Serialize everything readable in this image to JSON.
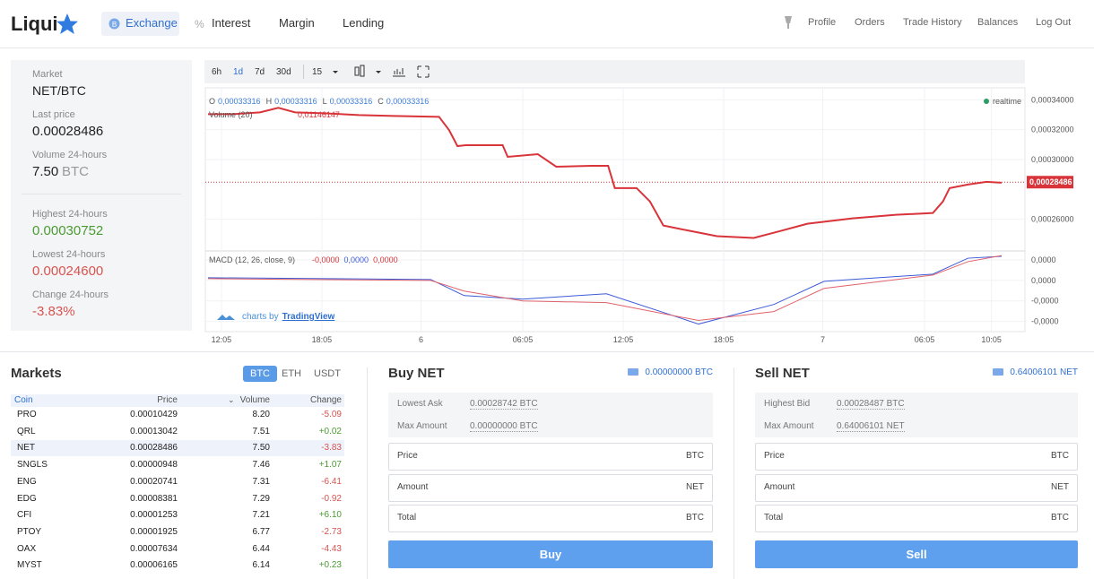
{
  "nav": {
    "brand": "Liqui",
    "items": [
      "Exchange",
      "Interest",
      "Margin",
      "Lending"
    ],
    "account": [
      "Profile",
      "Orders",
      "Trade History",
      "Balances",
      "Log Out"
    ]
  },
  "summary": {
    "market_label": "Market",
    "market": "NET/BTC",
    "stats": [
      {
        "label": "Last price",
        "value": "0.00028486"
      },
      {
        "label": "Volume 24-hours",
        "value": "7.50",
        "unit": "BTC"
      },
      {
        "label": "Highest 24-hours",
        "value": "0.00030752"
      },
      {
        "label": "Lowest 24-hours",
        "value": "0.00024600"
      },
      {
        "label": "Change 24-hours",
        "value": "-3.83%"
      }
    ]
  },
  "chart": {
    "type": "line",
    "ranges": [
      "6h",
      "1d",
      "7d",
      "30d"
    ],
    "interval": "15",
    "ohlc": [
      [
        "O",
        "0,00033316"
      ],
      [
        "H",
        "0,00033316"
      ],
      [
        "L",
        "0,00033316"
      ],
      [
        "C",
        "0,00033316"
      ]
    ],
    "volume_label": "Volume (20)",
    "volume_value": "0,01146147",
    "status": "realtime",
    "xlim": [
      -0.96,
      48
    ],
    "xticks": [
      {
        "value": 0,
        "label": "12:05"
      },
      {
        "value": 6,
        "label": "18:05"
      },
      {
        "value": 11.92,
        "label": "6"
      },
      {
        "value": 18,
        "label": "06:05"
      },
      {
        "value": 24,
        "label": "12:05"
      },
      {
        "value": 30,
        "label": "18:05"
      },
      {
        "value": 35.92,
        "label": "7"
      },
      {
        "value": 42,
        "label": "06:05"
      },
      {
        "value": 46,
        "label": "10:05"
      }
    ],
    "ylim": [
      0.00024,
      0.000348
    ],
    "yticks": [
      {
        "value": 0.00034,
        "label": "0,00034000"
      },
      {
        "value": 0.00032,
        "label": "0,00032000"
      },
      {
        "value": 0.0003,
        "label": "0,00030000"
      },
      {
        "value": 0.00026,
        "label": "0,00026000"
      }
    ],
    "price_marker": {
      "value": 0.00028486,
      "label": "0,00028486"
    },
    "price": {
      "color": "#d8343a",
      "x": [
        -0.8,
        0.7,
        2.3,
        3.4,
        4.4,
        6.1,
        8.2,
        10.3,
        13.0,
        13.6,
        14.1,
        14.6,
        16.8,
        17.1,
        18.9,
        20.0,
        22.1,
        23.1,
        23.5,
        24.8,
        25.6,
        26.4,
        28.0,
        29.6,
        31.8,
        33.4,
        35.0,
        37.7,
        40.3,
        42.5,
        43.1,
        43.5,
        44.6,
        45.7,
        46.6
      ],
      "values": [
        0.0003304,
        0.0003304,
        0.0003316,
        0.0003346,
        0.0003316,
        0.000331,
        0.0003298,
        0.0003292,
        0.0003286,
        0.0003197,
        0.000309,
        0.0003096,
        0.0003096,
        0.0003018,
        0.0003036,
        0.0002952,
        0.0002958,
        0.0002958,
        0.0002809,
        0.0002809,
        0.0002719,
        0.0002558,
        0.0002522,
        0.0002487,
        0.0002475,
        0.0002522,
        0.000257,
        0.0002606,
        0.000263,
        0.0002642,
        0.0002719,
        0.0002809,
        0.0002833,
        0.0002851,
        0.0002845
      ]
    },
    "macd_label": "MACD (12, 26, close, 9)",
    "macd_values": [
      "-0,0000",
      "0,0000",
      "0,0000"
    ],
    "macd_ylim": [
      -5e-05,
      2.7e-05
    ],
    "macd_yticks": [
      {
        "value": 2e-05,
        "label": "0,0000"
      },
      {
        "value": 0,
        "label": "0,0000"
      },
      {
        "value": -2e-05,
        "label": "-0,0000"
      },
      {
        "value": -4e-05,
        "label": "-0,0000"
      }
    ],
    "macd_x": [
      -0.8,
      12.5,
      14.5,
      18,
      23,
      28.5,
      33,
      36,
      42.5,
      44.6,
      46.6
    ],
    "macd_series": [
      {
        "color": "#3d5bd8",
        "values": [
          2.6e-06,
          9e-07,
          -1.48e-05,
          -1.83e-05,
          -1.3e-05,
          -4.26e-05,
          -2.35e-05,
          -9e-07,
          6.1e-06,
          2.17e-05,
          2.35e-05
        ]
      },
      {
        "color": "#e0626a",
        "values": [
          1.7e-06,
          0,
          -1.04e-05,
          -2e-05,
          -2.17e-05,
          -3.91e-05,
          -3.04e-05,
          -7.8e-06,
          5.2e-06,
          1.83e-05,
          2.43e-05
        ]
      }
    ],
    "credit": "charts by",
    "credit_brand": "TradingView"
  },
  "markets": {
    "title": "Markets",
    "tabs": [
      "BTC",
      "ETH",
      "USDT"
    ],
    "columns": [
      "Coin",
      "Price",
      "Volume",
      "Change"
    ],
    "rows": [
      [
        "PRO",
        "0.00010429",
        "8.20",
        "-5.09"
      ],
      [
        "QRL",
        "0.00013042",
        "7.51",
        "+0.02"
      ],
      [
        "NET",
        "0.00028486",
        "7.50",
        "-3.83"
      ],
      [
        "SNGLS",
        "0.00000948",
        "7.46",
        "+1.07"
      ],
      [
        "ENG",
        "0.00020741",
        "7.31",
        "-6.41"
      ],
      [
        "EDG",
        "0.00008381",
        "7.29",
        "-0.92"
      ],
      [
        "CFI",
        "0.00001253",
        "7.21",
        "+6.10"
      ],
      [
        "PTOY",
        "0.00001925",
        "6.77",
        "-2.73"
      ],
      [
        "OAX",
        "0.00007634",
        "6.44",
        "-4.43"
      ],
      [
        "MYST",
        "0.00006165",
        "6.14",
        "+0.23"
      ]
    ]
  },
  "orders": [
    {
      "title": "Buy NET",
      "balance": "0.00000000 BTC",
      "info": [
        [
          "Lowest Ask",
          "0.00028742 BTC"
        ],
        [
          "Max Amount",
          "0.00000000 BTC"
        ]
      ],
      "inputs": [
        [
          "Price",
          "BTC"
        ],
        [
          "Amount",
          "NET"
        ],
        [
          "Total",
          "BTC"
        ]
      ],
      "button": "Buy"
    },
    {
      "title": "Sell NET",
      "balance": "0.64006101 NET",
      "info": [
        [
          "Highest Bid",
          "0.00028487 BTC"
        ],
        [
          "Max Amount",
          "0.64006101 NET"
        ]
      ],
      "inputs": [
        [
          "Price",
          "BTC"
        ],
        [
          "Amount",
          "NET"
        ],
        [
          "Total",
          "BTC"
        ]
      ],
      "button": "Sell"
    }
  ]
}
